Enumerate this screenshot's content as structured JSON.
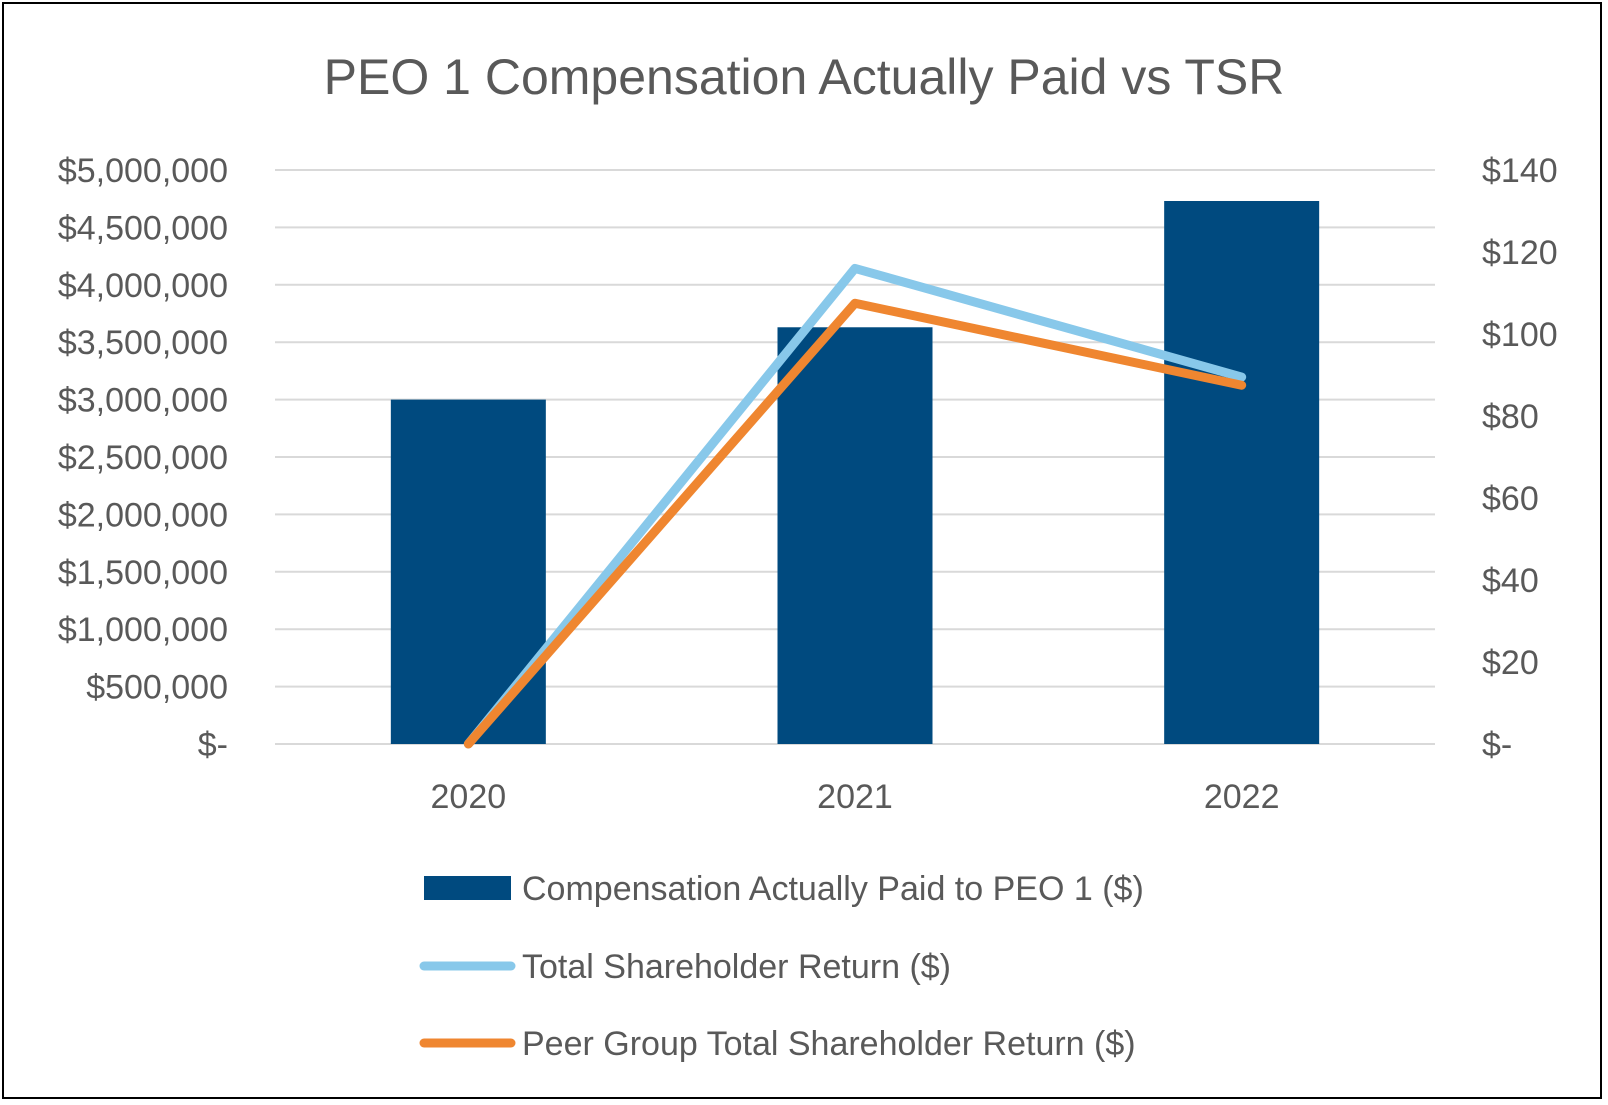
{
  "chart_data": {
    "type": "bar",
    "title": "PEO 1 Compensation Actually Paid  vs TSR",
    "categories": [
      "2020",
      "2021",
      "2022"
    ],
    "left_axis": {
      "ylim": [
        0,
        5000000
      ],
      "tick_values": [
        0,
        500000,
        1000000,
        1500000,
        2000000,
        2500000,
        3000000,
        3500000,
        4000000,
        4500000,
        5000000
      ],
      "tick_labels": [
        "$-",
        "$500,000",
        "$1,000,000",
        "$1,500,000",
        "$2,000,000",
        "$2,500,000",
        "$3,000,000",
        "$3,500,000",
        "$4,000,000",
        "$4,500,000",
        "$5,000,000"
      ]
    },
    "right_axis": {
      "ylim": [
        0,
        140
      ],
      "tick_values": [
        0,
        20,
        40,
        60,
        80,
        100,
        120,
        140
      ],
      "tick_labels": [
        "$-",
        "$20",
        "$40",
        "$60",
        "$80",
        "$100",
        "$120",
        "$140"
      ]
    },
    "series": [
      {
        "name": "Compensation Actually Paid to PEO 1 ($)",
        "kind": "bar",
        "axis": "left",
        "color": "#004a7f",
        "values": [
          3000000,
          3630000,
          4730000
        ]
      },
      {
        "name": "Total Shareholder Return ($)",
        "kind": "line",
        "axis": "right",
        "color": "#88c8ea",
        "values": [
          0,
          116,
          89.5
        ]
      },
      {
        "name": "Peer Group Total Shareholder Return ($)",
        "kind": "line",
        "axis": "right",
        "color": "#ef8630",
        "values": [
          0,
          107.5,
          87.5
        ]
      }
    ],
    "legend_position": "bottom",
    "grid": true
  }
}
